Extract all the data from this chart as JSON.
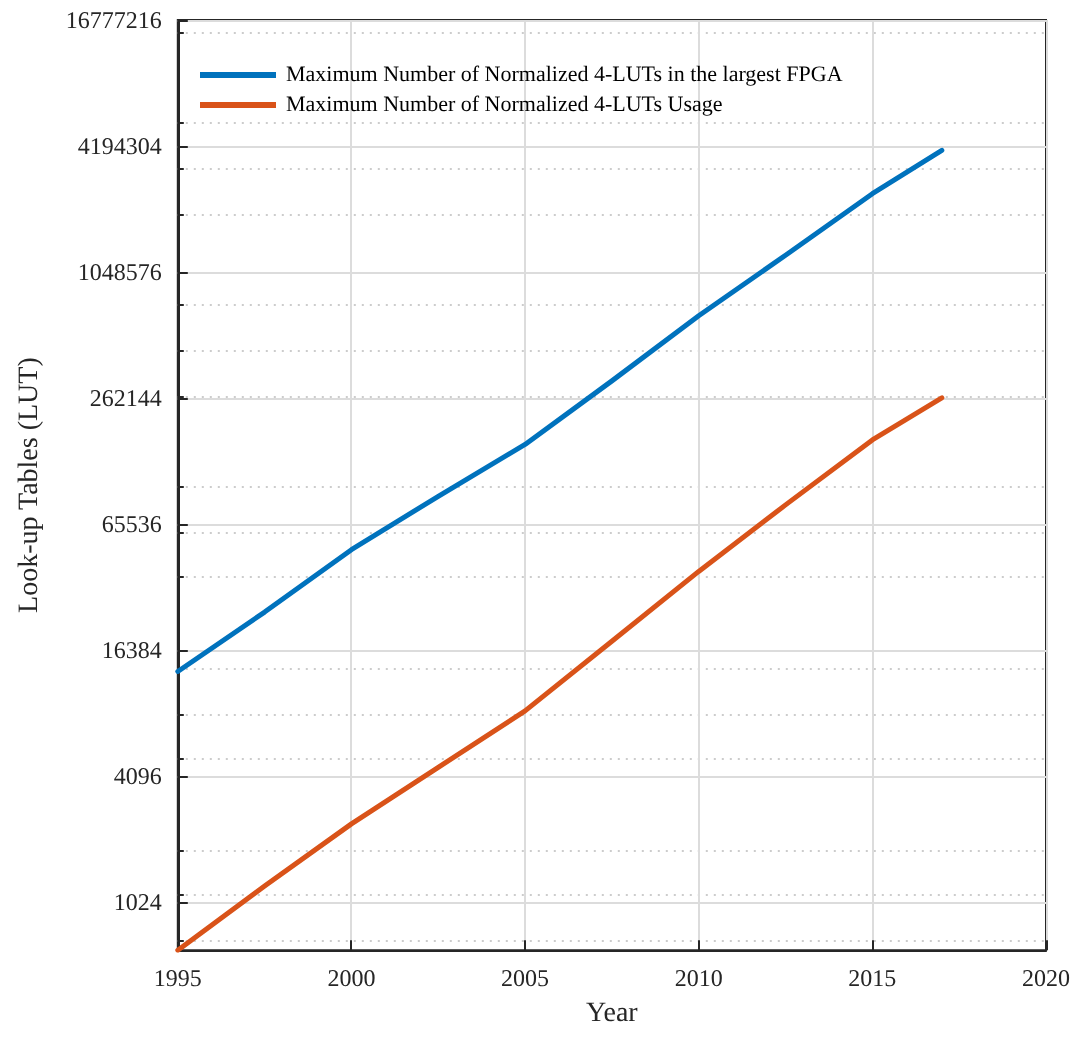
{
  "chart_data": {
    "type": "line",
    "xlabel": "Year",
    "ylabel": "Look-up Tables (LUT)",
    "x": [
      1995,
      1997.5,
      2000,
      2002.5,
      2005,
      2007.5,
      2010,
      2012.5,
      2015,
      2017
    ],
    "series": [
      {
        "name": "Maximum Number of Normalized 4-LUTs in the largest FPGA",
        "color": "#0072bd",
        "values": [
          12900,
          24800,
          49300,
          88700,
          157000,
          316000,
          647000,
          1260000,
          2480000,
          4000000
        ]
      },
      {
        "name": "Maximum Number of Normalized 4-LUTs Usage",
        "color": "#d95319",
        "values": [
          600,
          1215,
          2410,
          4490,
          8360,
          18000,
          38800,
          80700,
          165000,
          262144
        ]
      }
    ],
    "xlim": [
      1995,
      2020
    ],
    "xticks": [
      1995,
      2000,
      2005,
      2010,
      2015,
      2020
    ],
    "ylim": [
      600,
      16777216
    ],
    "yticks": [
      1024,
      4096,
      16384,
      65536,
      262144,
      1048576,
      4194304,
      16777216
    ],
    "log": "y",
    "grid": true,
    "legend": "top left",
    "marker": "none",
    "line_style": "solid"
  }
}
